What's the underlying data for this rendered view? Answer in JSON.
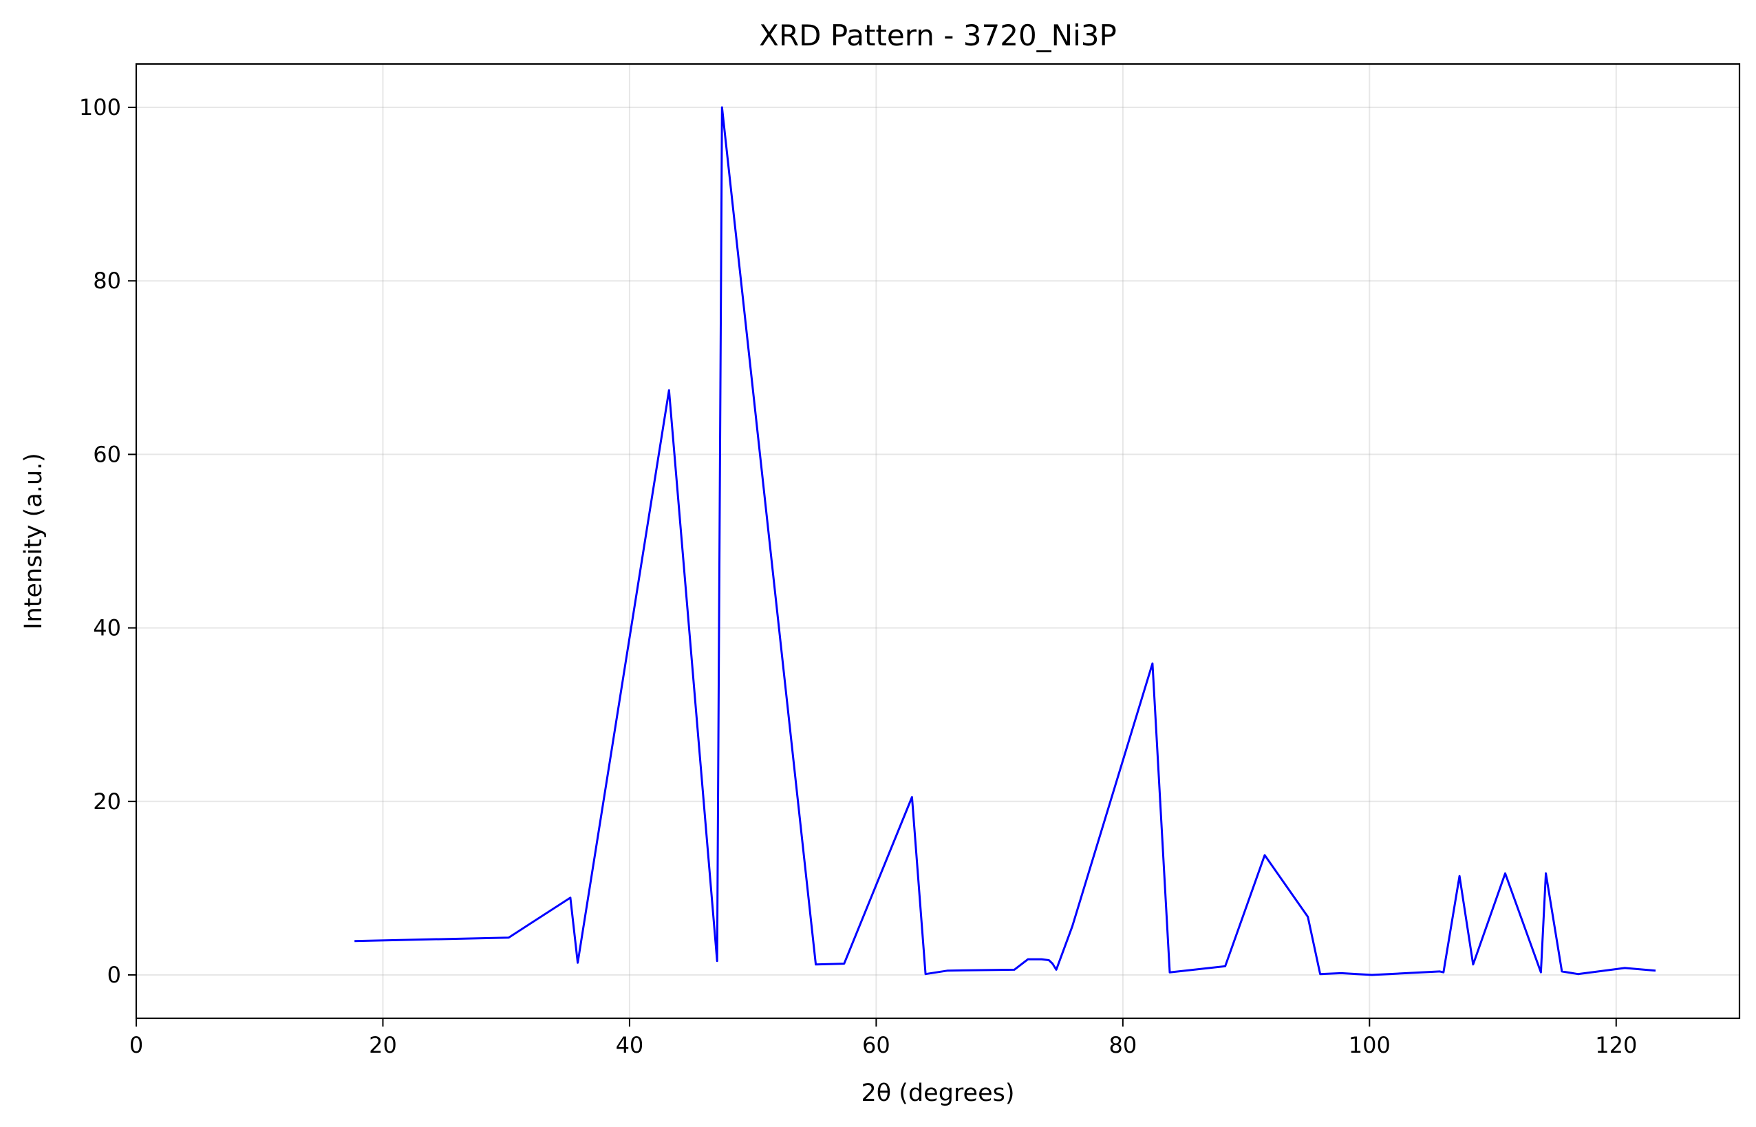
{
  "chart_data": {
    "type": "line",
    "title": "XRD Pattern - 3720_Ni3P",
    "xlabel": "2θ (degrees)",
    "ylabel": "Intensity (a.u.)",
    "xlim": [
      0,
      130
    ],
    "ylim": [
      -5,
      105
    ],
    "xticks": [
      0,
      20,
      40,
      60,
      80,
      100,
      120
    ],
    "yticks": [
      0,
      20,
      40,
      60,
      80,
      100
    ],
    "grid": true,
    "series": [
      {
        "color": "#0000ff",
        "x": [
          17.7,
          30.2,
          35.2,
          35.8,
          43.2,
          47.1,
          47.5,
          55.1,
          57.4,
          62.9,
          64.0,
          65.8,
          71.2,
          72.3,
          73.4,
          74.0,
          74.3,
          74.6,
          75.9,
          82.4,
          83.8,
          88.3,
          91.5,
          95.0,
          96.0,
          97.7,
          100.2,
          103.0,
          105.7,
          106.0,
          107.3,
          108.4,
          111.0,
          113.9,
          114.3,
          115.6,
          116.9,
          120.7,
          123.2
        ],
        "y": [
          3.9,
          4.3,
          8.9,
          1.4,
          67.4,
          1.6,
          100.0,
          1.2,
          1.3,
          20.5,
          0.1,
          0.5,
          0.6,
          1.8,
          1.8,
          1.7,
          1.3,
          0.6,
          5.6,
          35.9,
          0.3,
          1.0,
          13.8,
          6.7,
          0.1,
          0.2,
          0.0,
          0.2,
          0.4,
          0.3,
          11.4,
          1.2,
          11.7,
          0.3,
          11.7,
          0.4,
          0.1,
          0.8,
          0.5
        ]
      }
    ]
  }
}
